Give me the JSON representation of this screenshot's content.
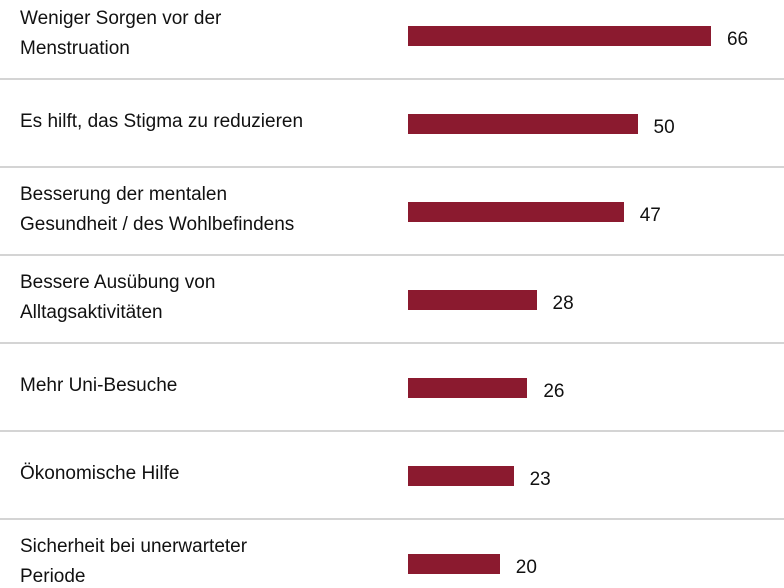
{
  "chart_data": {
    "type": "bar",
    "orientation": "horizontal",
    "color": "#8b1a2f",
    "categories": [
      "Weniger Sorgen vor der\nMenstruation",
      "Es hilft, das Stigma zu reduzieren",
      "Besserung der mentalen\nGesundheit / des Wohlbefindens",
      "Bessere Ausübung von\nAlltagsaktivitäten",
      "Mehr Uni-Besuche",
      "Ökonomische Hilfe",
      "Sicherheit bei unerwarteter\nPeriode"
    ],
    "values": [
      66,
      50,
      47,
      28,
      26,
      23,
      20
    ]
  }
}
